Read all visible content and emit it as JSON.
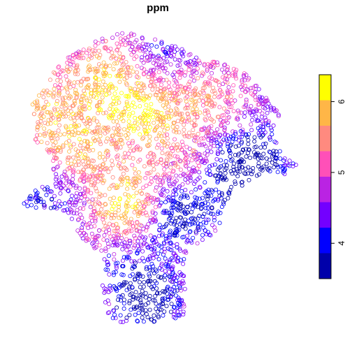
{
  "chart_data": {
    "type": "scatter",
    "title": "ppm",
    "xlabel": "",
    "ylabel": "",
    "marker": "open-circle",
    "grid": false,
    "legend": "right",
    "point_count": 3000,
    "colorbar": {
      "breaks": [
        3.5,
        3.86,
        4.22,
        4.58,
        4.94,
        5.3,
        5.66,
        6.02,
        6.38
      ],
      "colors": [
        "#0000AA",
        "#0000FF",
        "#7300FF",
        "#BA23E3",
        "#FF50B8",
        "#FF8A7F",
        "#FFB647",
        "#FFFF00"
      ],
      "ticks": [
        {
          "value": 4,
          "label": "4"
        },
        {
          "value": 5,
          "label": "5"
        },
        {
          "value": 6,
          "label": "6"
        }
      ]
    }
  }
}
